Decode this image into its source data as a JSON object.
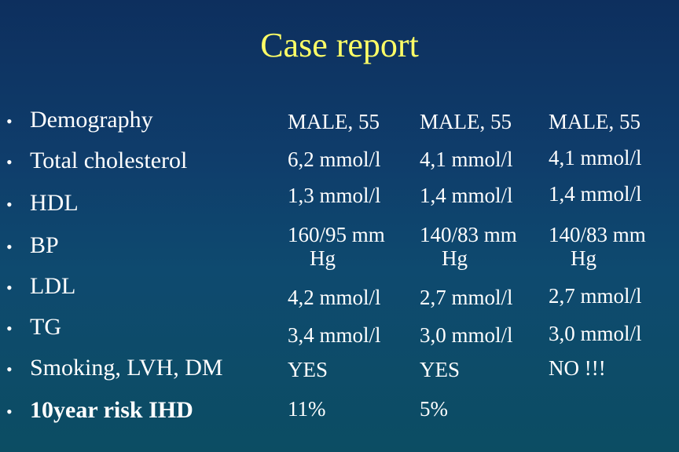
{
  "title": "Case report",
  "rows": [
    {
      "label": "Demography",
      "bold": false,
      "values": [
        "MALE, 55",
        "MALE, 55",
        "MALE, 55"
      ]
    },
    {
      "label": "Total cholesterol",
      "bold": false,
      "values": [
        "6,2 mmol/l",
        "4,1 mmol/l",
        "4,1 mmol/l"
      ]
    },
    {
      "label": "HDL",
      "bold": false,
      "values": [
        "1,3 mmol/l",
        "1,4 mmol/l",
        "1,4 mmol/l"
      ]
    },
    {
      "label": "BP",
      "bold": false,
      "values": [
        "160/95 mm",
        "140/83 mm",
        "140/83 mm"
      ],
      "values_cont": [
        "Hg",
        "Hg",
        "Hg"
      ]
    },
    {
      "label": "LDL",
      "bold": false,
      "values": [
        "4,2 mmol/l",
        "2,7 mmol/l",
        "2,7 mmol/l"
      ]
    },
    {
      "label": "TG",
      "bold": false,
      "values": [
        "3,4 mmol/l",
        "3,0 mmol/l",
        "3,0 mmol/l"
      ]
    },
    {
      "label": "Smoking, LVH, DM",
      "bold": false,
      "values": [
        "YES",
        "YES",
        "NO !!!"
      ]
    },
    {
      "label": "10year risk IHD",
      "bold": true,
      "values": [
        "11%",
        "5%",
        ""
      ]
    }
  ],
  "bullet_char": "•",
  "colors": {
    "title": "#ffff66",
    "text": "#ffffff",
    "background_top": "#0d2f5e",
    "background_bottom": "#0c4d63"
  }
}
